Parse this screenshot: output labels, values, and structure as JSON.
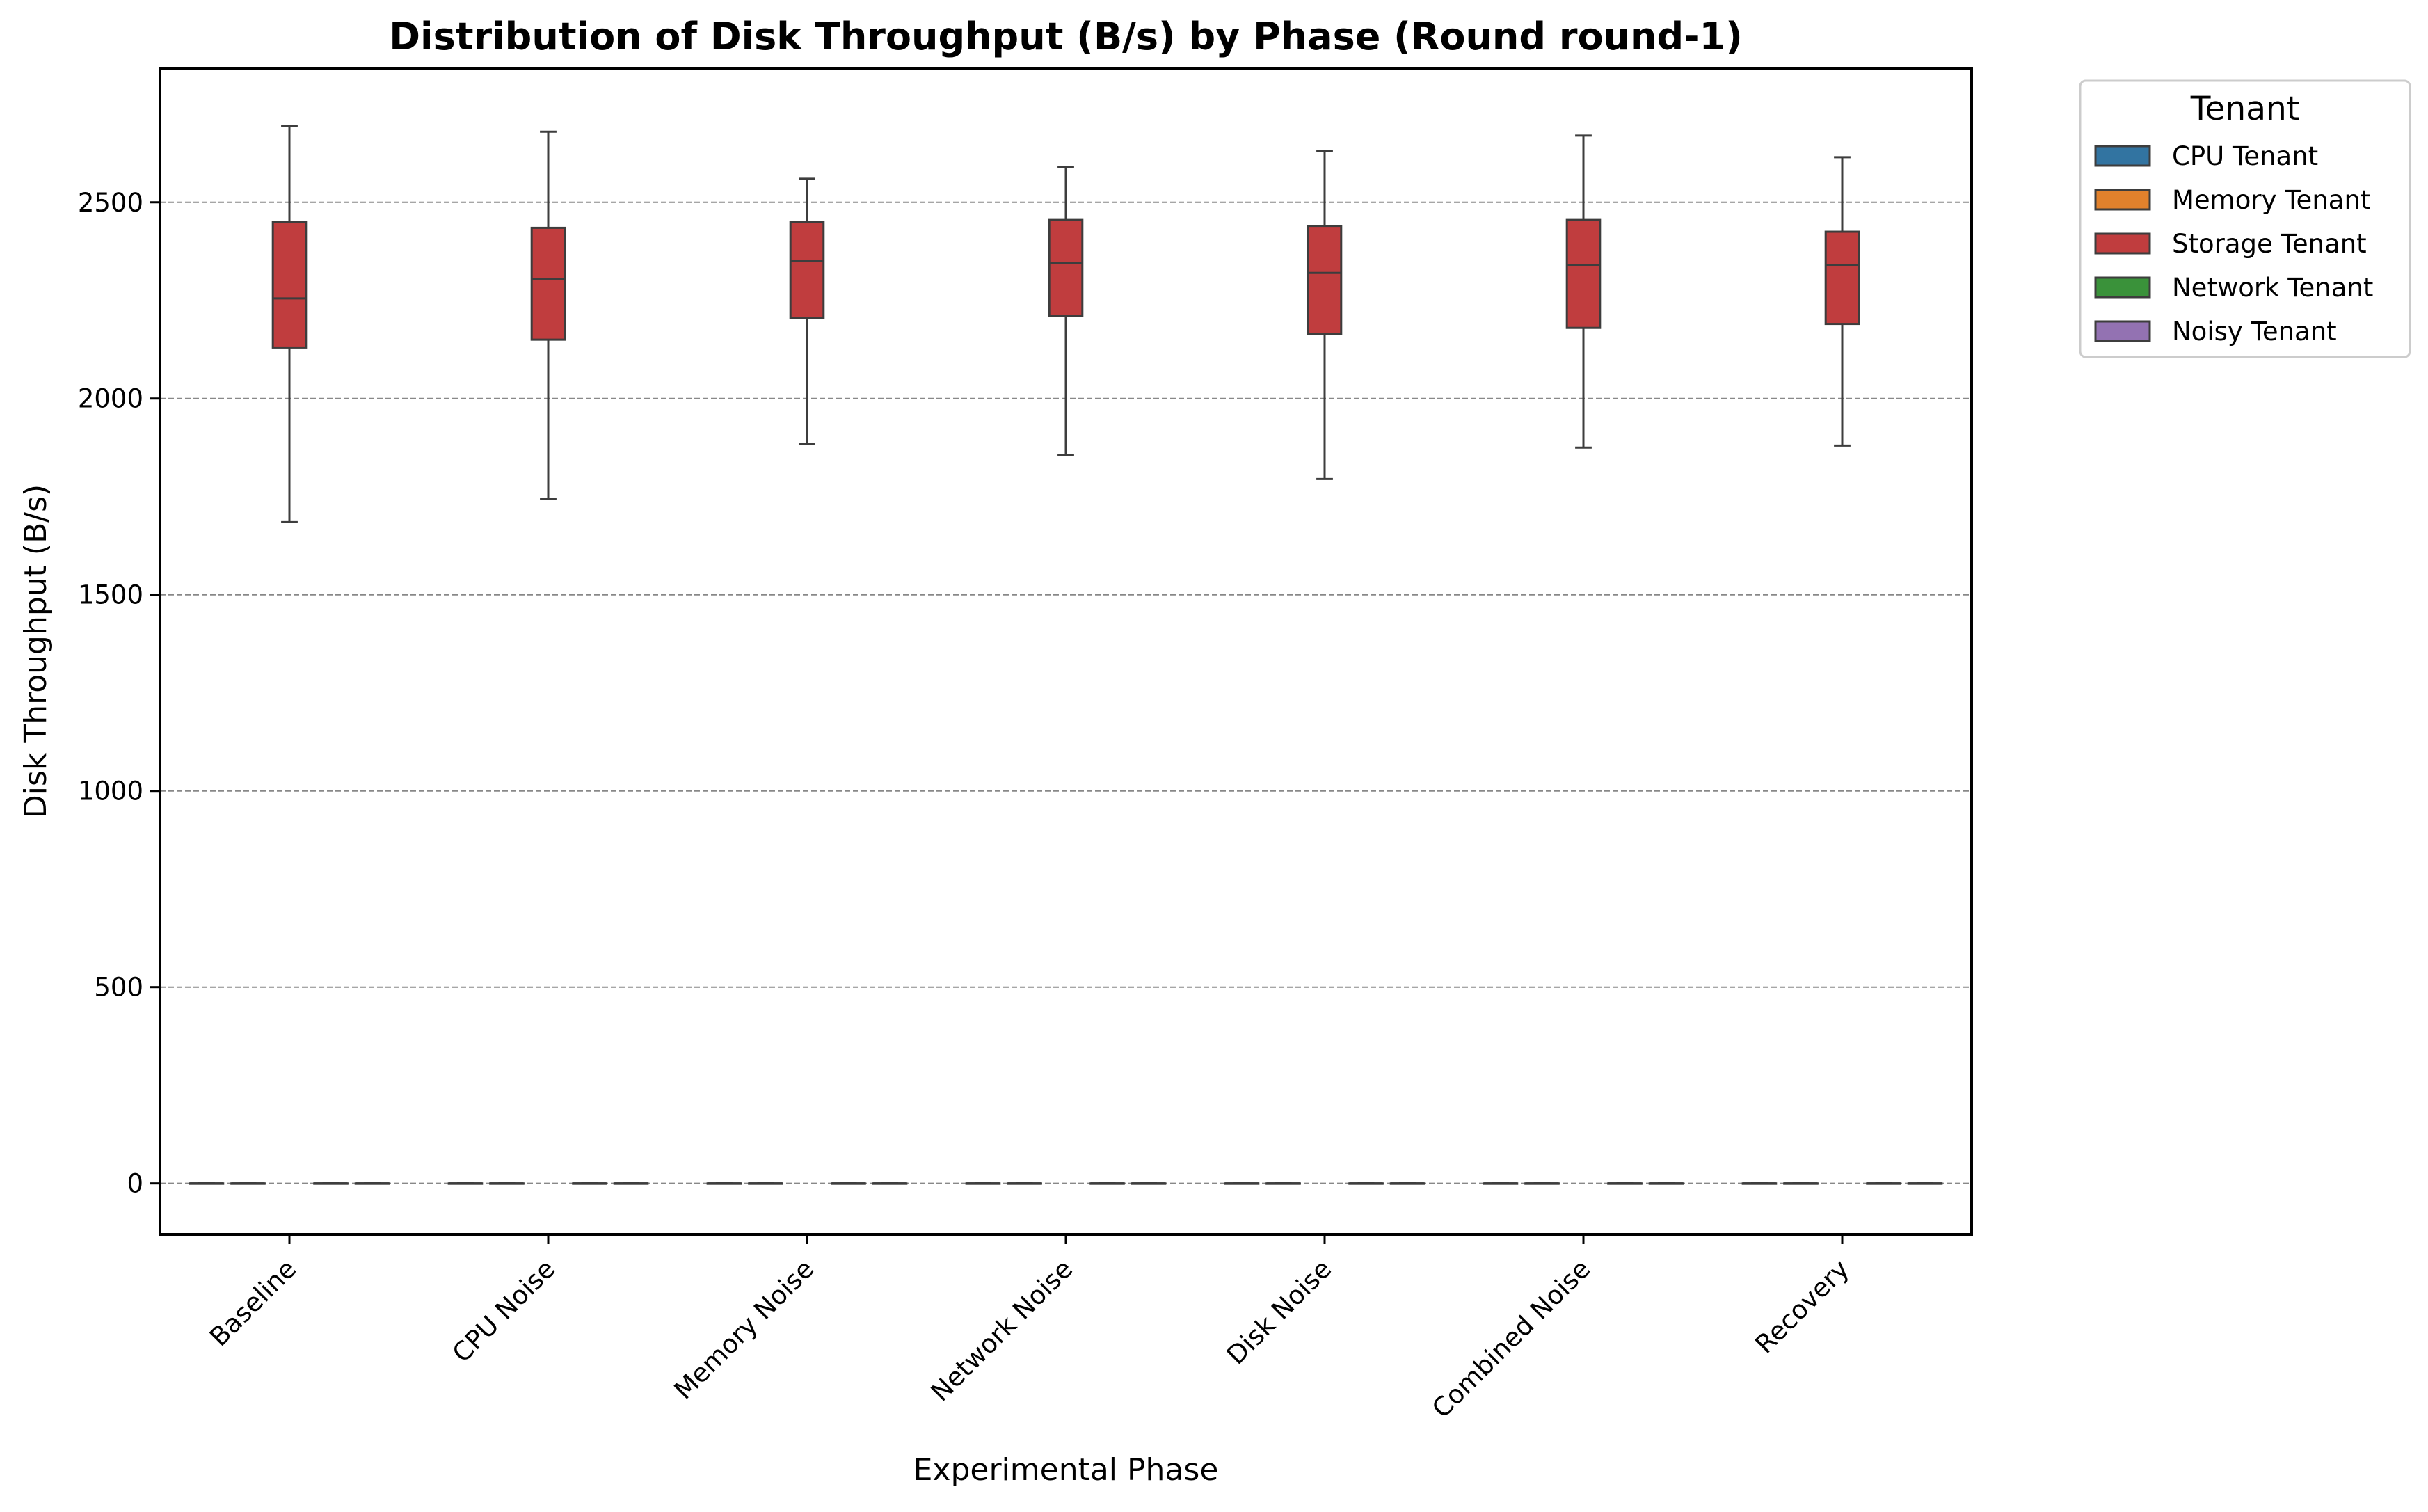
{
  "chart_data": {
    "type": "box",
    "title": "Distribution of Disk Throughput (B/s) by Phase (Round round-1)",
    "xlabel": "Experimental Phase",
    "ylabel": "Disk Throughput (B/s)",
    "ylim": [
      -130,
      2840
    ],
    "yticks": [
      0,
      500,
      1000,
      1500,
      2000,
      2500
    ],
    "ytick_labels": [
      "0",
      "500",
      "1000",
      "1500",
      "2000",
      "2500"
    ],
    "grid": "horizontal dashed",
    "categories": [
      "Baseline",
      "CPU Noise",
      "Memory Noise",
      "Network Noise",
      "Disk Noise",
      "Combined Noise",
      "Recovery"
    ],
    "legend": {
      "title": "Tenant",
      "placement": "outside upper right",
      "entries": [
        "CPU Tenant",
        "Memory Tenant",
        "Storage Tenant",
        "Network Tenant",
        "Noisy Tenant"
      ]
    },
    "colors": {
      "CPU Tenant": "#3274a1",
      "Memory Tenant": "#e1812c",
      "Storage Tenant": "#c03d3e",
      "Network Tenant": "#3a923a",
      "Noisy Tenant": "#9372b2"
    },
    "series": [
      {
        "name": "CPU Tenant",
        "stats": [
          {
            "whislo": 0,
            "q1": 0,
            "med": 0,
            "q3": 0,
            "whishi": 0
          },
          {
            "whislo": 0,
            "q1": 0,
            "med": 0,
            "q3": 0,
            "whishi": 0
          },
          {
            "whislo": 0,
            "q1": 0,
            "med": 0,
            "q3": 0,
            "whishi": 0
          },
          {
            "whislo": 0,
            "q1": 0,
            "med": 0,
            "q3": 0,
            "whishi": 0
          },
          {
            "whislo": 0,
            "q1": 0,
            "med": 0,
            "q3": 0,
            "whishi": 0
          },
          {
            "whislo": 0,
            "q1": 0,
            "med": 0,
            "q3": 0,
            "whishi": 0
          },
          {
            "whislo": 0,
            "q1": 0,
            "med": 0,
            "q3": 0,
            "whishi": 0
          }
        ]
      },
      {
        "name": "Memory Tenant",
        "stats": [
          {
            "whislo": 0,
            "q1": 0,
            "med": 0,
            "q3": 0,
            "whishi": 0
          },
          {
            "whislo": 0,
            "q1": 0,
            "med": 0,
            "q3": 0,
            "whishi": 0
          },
          {
            "whislo": 0,
            "q1": 0,
            "med": 0,
            "q3": 0,
            "whishi": 0
          },
          {
            "whislo": 0,
            "q1": 0,
            "med": 0,
            "q3": 0,
            "whishi": 0
          },
          {
            "whislo": 0,
            "q1": 0,
            "med": 0,
            "q3": 0,
            "whishi": 0
          },
          {
            "whislo": 0,
            "q1": 0,
            "med": 0,
            "q3": 0,
            "whishi": 0
          },
          {
            "whislo": 0,
            "q1": 0,
            "med": 0,
            "q3": 0,
            "whishi": 0
          }
        ]
      },
      {
        "name": "Storage Tenant",
        "stats": [
          {
            "whislo": 1685,
            "q1": 2130,
            "med": 2255,
            "q3": 2450,
            "whishi": 2695
          },
          {
            "whislo": 1745,
            "q1": 2150,
            "med": 2305,
            "q3": 2435,
            "whishi": 2680
          },
          {
            "whislo": 1885,
            "q1": 2205,
            "med": 2350,
            "q3": 2450,
            "whishi": 2560
          },
          {
            "whislo": 1855,
            "q1": 2210,
            "med": 2345,
            "q3": 2455,
            "whishi": 2590
          },
          {
            "whislo": 1795,
            "q1": 2165,
            "med": 2320,
            "q3": 2440,
            "whishi": 2630
          },
          {
            "whislo": 1875,
            "q1": 2180,
            "med": 2340,
            "q3": 2455,
            "whishi": 2670
          },
          {
            "whislo": 1880,
            "q1": 2190,
            "med": 2340,
            "q3": 2425,
            "whishi": 2615
          }
        ]
      },
      {
        "name": "Network Tenant",
        "stats": [
          {
            "whislo": 0,
            "q1": 0,
            "med": 0,
            "q3": 0,
            "whishi": 0
          },
          {
            "whislo": 0,
            "q1": 0,
            "med": 0,
            "q3": 0,
            "whishi": 0
          },
          {
            "whislo": 0,
            "q1": 0,
            "med": 0,
            "q3": 0,
            "whishi": 0
          },
          {
            "whislo": 0,
            "q1": 0,
            "med": 0,
            "q3": 0,
            "whishi": 0
          },
          {
            "whislo": 0,
            "q1": 0,
            "med": 0,
            "q3": 0,
            "whishi": 0
          },
          {
            "whislo": 0,
            "q1": 0,
            "med": 0,
            "q3": 0,
            "whishi": 0
          },
          {
            "whislo": 0,
            "q1": 0,
            "med": 0,
            "q3": 0,
            "whishi": 0
          }
        ]
      },
      {
        "name": "Noisy Tenant",
        "stats": [
          {
            "whislo": 0,
            "q1": 0,
            "med": 0,
            "q3": 0,
            "whishi": 0
          },
          {
            "whislo": 0,
            "q1": 0,
            "med": 0,
            "q3": 0,
            "whishi": 0
          },
          {
            "whislo": 0,
            "q1": 0,
            "med": 0,
            "q3": 0,
            "whishi": 0
          },
          {
            "whislo": 0,
            "q1": 0,
            "med": 0,
            "q3": 0,
            "whishi": 0
          },
          {
            "whislo": 0,
            "q1": 0,
            "med": 0,
            "q3": 0,
            "whishi": 0
          },
          {
            "whislo": 0,
            "q1": 0,
            "med": 0,
            "q3": 0,
            "whishi": 0
          },
          {
            "whislo": 0,
            "q1": 0,
            "med": 0,
            "q3": 0,
            "whishi": 0
          }
        ]
      }
    ]
  }
}
